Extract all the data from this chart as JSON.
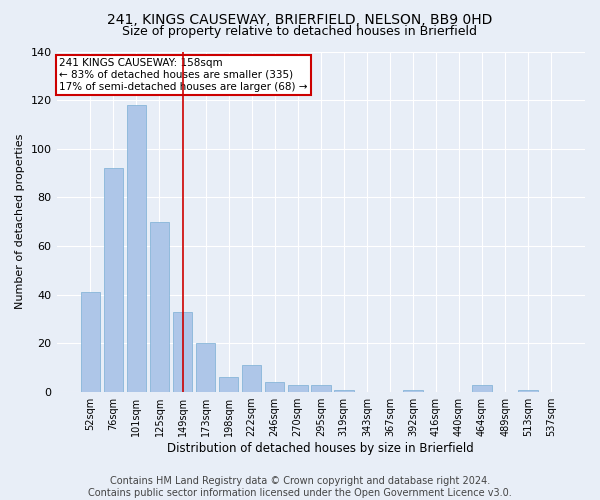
{
  "title_line1": "241, KINGS CAUSEWAY, BRIERFIELD, NELSON, BB9 0HD",
  "title_line2": "Size of property relative to detached houses in Brierfield",
  "xlabel": "Distribution of detached houses by size in Brierfield",
  "ylabel": "Number of detached properties",
  "categories": [
    "52sqm",
    "76sqm",
    "101sqm",
    "125sqm",
    "149sqm",
    "173sqm",
    "198sqm",
    "222sqm",
    "246sqm",
    "270sqm",
    "295sqm",
    "319sqm",
    "343sqm",
    "367sqm",
    "392sqm",
    "416sqm",
    "440sqm",
    "464sqm",
    "489sqm",
    "513sqm",
    "537sqm"
  ],
  "values": [
    41,
    92,
    118,
    70,
    33,
    20,
    6,
    11,
    4,
    3,
    3,
    1,
    0,
    0,
    1,
    0,
    0,
    3,
    0,
    1,
    0
  ],
  "bar_color": "#aec6e8",
  "bar_edge_color": "#7aafd4",
  "vline_x": 4.0,
  "vline_color": "#cc0000",
  "annotation_text": "241 KINGS CAUSEWAY: 158sqm\n← 83% of detached houses are smaller (335)\n17% of semi-detached houses are larger (68) →",
  "annotation_box_color": "#ffffff",
  "annotation_box_edge": "#cc0000",
  "ylim": [
    0,
    140
  ],
  "yticks": [
    0,
    20,
    40,
    60,
    80,
    100,
    120,
    140
  ],
  "bg_color": "#e8eef7",
  "grid_color": "#ffffff",
  "footer_line1": "Contains HM Land Registry data © Crown copyright and database right 2024.",
  "footer_line2": "Contains public sector information licensed under the Open Government Licence v3.0.",
  "title_fontsize": 10,
  "subtitle_fontsize": 9,
  "footer_fontsize": 7,
  "annot_fontsize": 7.5,
  "ylabel_fontsize": 8,
  "xlabel_fontsize": 8.5,
  "ytick_fontsize": 8,
  "xtick_fontsize": 7
}
